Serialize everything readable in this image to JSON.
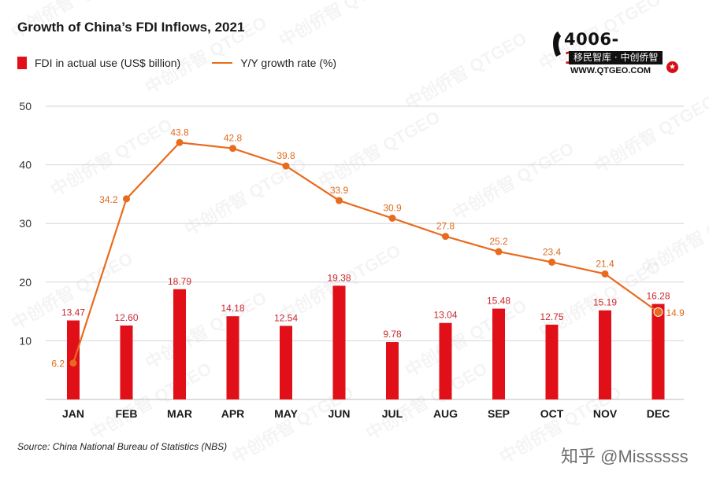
{
  "title": "Growth of China’s FDI Inflows, 2021",
  "legend": {
    "bar_label": "FDI in actual use (US$ billion)",
    "line_label": "Y/Y growth rate (%)"
  },
  "source": "Source: China National Bureau of Statistics (NBS)",
  "logo": {
    "phone_main": "4006-",
    "phone_hi": "123670",
    "tagline": "移民智库 · 中创侨智",
    "url": "WWW.QTGEO.COM",
    "star": "★"
  },
  "watermark": {
    "brand": "中创侨智 QTGEO",
    "credit": "知乎 @Missssss"
  },
  "colors": {
    "bar": "#e10f17",
    "line": "#e86b1e",
    "bar_label": "#c8282e",
    "line_label": "#e06a1d",
    "grid": "#d6d6d6",
    "axis_text": "#333333"
  },
  "chart_data": {
    "type": "bar",
    "title": "Growth of China’s FDI Inflows, 2021",
    "categories": [
      "JAN",
      "FEB",
      "MAR",
      "APR",
      "MAY",
      "JUN",
      "JUL",
      "AUG",
      "SEP",
      "OCT",
      "NOV",
      "DEC"
    ],
    "series": [
      {
        "name": "FDI in actual use (US$ billion)",
        "type": "bar",
        "values": [
          13.47,
          12.6,
          18.79,
          14.18,
          12.54,
          19.38,
          9.78,
          13.04,
          15.48,
          12.75,
          15.19,
          16.28
        ],
        "labels": [
          "13.47",
          "12.60",
          "18.79",
          "14.18",
          "12.54",
          "19.38",
          "9.78",
          "13.04",
          "15.48",
          "12.75",
          "15.19",
          "16.28"
        ]
      },
      {
        "name": "Y/Y growth rate (%)",
        "type": "line",
        "values": [
          6.2,
          34.2,
          43.8,
          42.8,
          39.8,
          33.9,
          30.9,
          27.8,
          25.2,
          23.4,
          21.4,
          14.9
        ],
        "labels": [
          "6.2",
          "34.2",
          "43.8",
          "42.8",
          "39.8",
          "33.9",
          "30.9",
          "27.8",
          "25.2",
          "23.4",
          "21.4",
          "14.9"
        ]
      }
    ],
    "ylim": [
      0,
      50
    ],
    "yticks": [
      10,
      20,
      30,
      40,
      50
    ],
    "xlabel": "",
    "ylabel": "",
    "grid": true,
    "legend_position": "top-left"
  }
}
